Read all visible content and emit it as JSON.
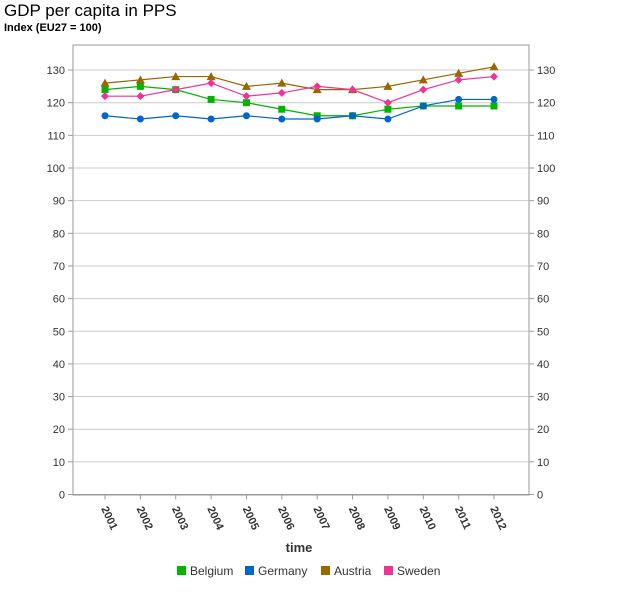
{
  "chart_data": {
    "type": "line",
    "title": "GDP per capita in PPS",
    "subtitle": "Index (EU27 = 100)",
    "xlabel": "time",
    "ylabel": "",
    "x": [
      "2001",
      "2002",
      "2003",
      "2004",
      "2005",
      "2006",
      "2007",
      "2008",
      "2009",
      "2010",
      "2011",
      "2012"
    ],
    "ylim": [
      0,
      135
    ],
    "yticks": [
      0,
      10,
      20,
      30,
      40,
      50,
      60,
      70,
      80,
      90,
      100,
      110,
      120,
      130
    ],
    "grid": true,
    "legend_position": "bottom",
    "series": [
      {
        "name": "Belgium",
        "color": "#00b400",
        "marker": "square",
        "values": [
          124,
          125,
          124,
          121,
          120,
          118,
          116,
          116,
          118,
          119,
          119,
          119
        ]
      },
      {
        "name": "Germany",
        "color": "#0066cc",
        "marker": "circle",
        "values": [
          116,
          115,
          116,
          115,
          116,
          115,
          115,
          116,
          115,
          119,
          121,
          121
        ]
      },
      {
        "name": "Austria",
        "color": "#996600",
        "marker": "triangle",
        "values": [
          126,
          127,
          128,
          128,
          125,
          126,
          124,
          124,
          125,
          127,
          129,
          131
        ]
      },
      {
        "name": "Sweden",
        "color": "#ee3399",
        "marker": "diamond",
        "values": [
          122,
          122,
          124,
          126,
          122,
          123,
          125,
          124,
          120,
          124,
          127,
          128
        ]
      }
    ]
  }
}
